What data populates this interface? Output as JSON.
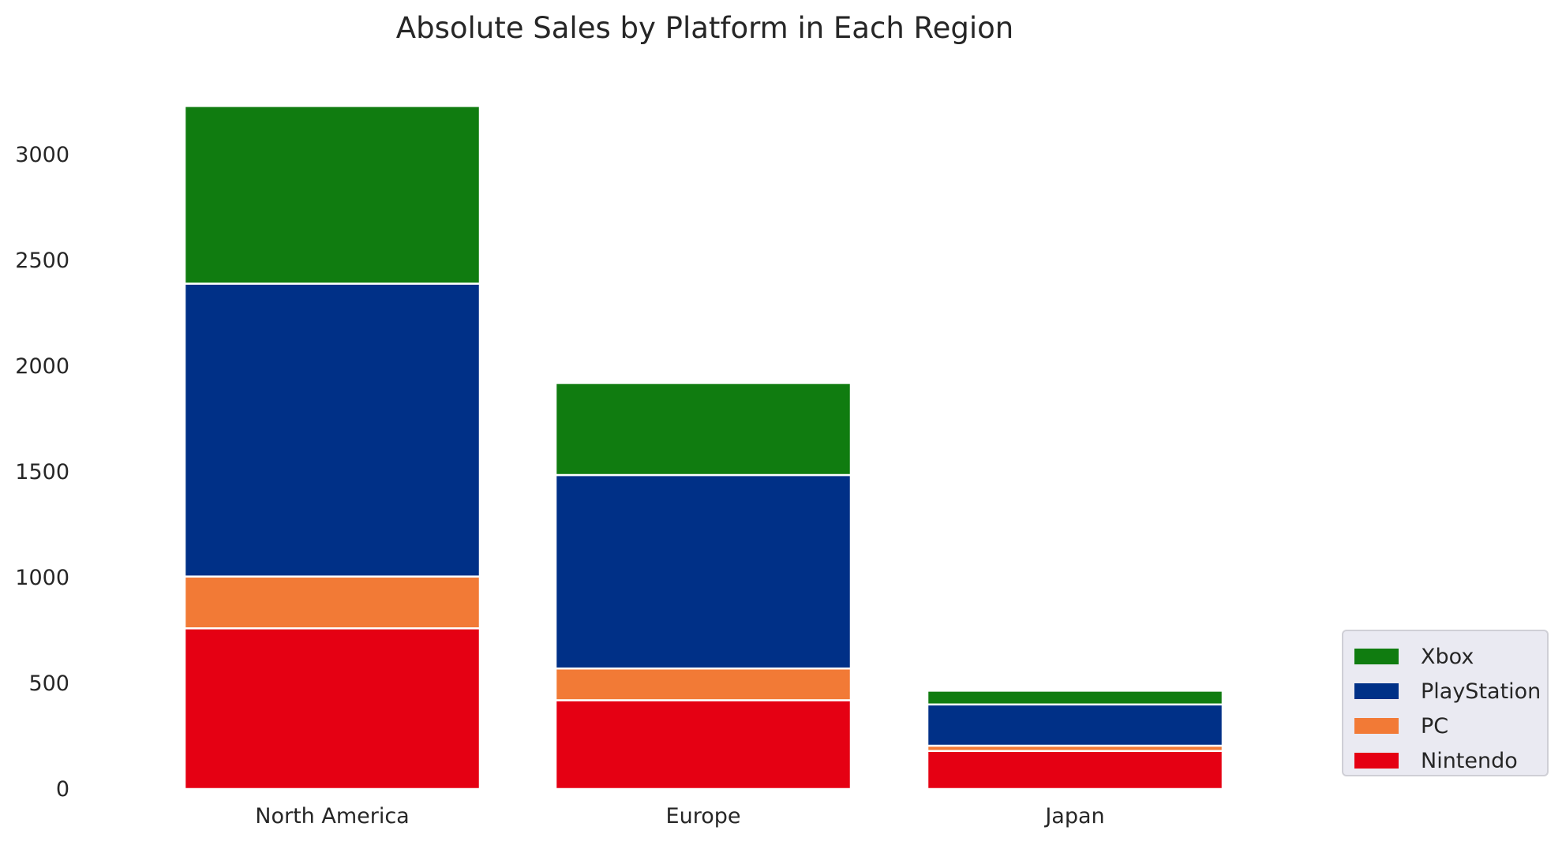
{
  "chart_data": {
    "type": "bar",
    "stacked": true,
    "title": "Absolute Sales by Platform in Each Region",
    "xlabel": "",
    "ylabel": "",
    "categories": [
      "North America",
      "Europe",
      "Japan"
    ],
    "series": [
      {
        "name": "Nintendo",
        "color": "#e50013",
        "values": [
          760,
          420,
          180
        ]
      },
      {
        "name": "PC",
        "color": "#f27a36",
        "values": [
          245,
          150,
          25
        ]
      },
      {
        "name": "PlayStation",
        "color": "#003087",
        "values": [
          1385,
          915,
          195
        ]
      },
      {
        "name": "Xbox",
        "color": "#107c10",
        "values": [
          840,
          435,
          65
        ]
      }
    ],
    "legend_order": [
      "Xbox",
      "PlayStation",
      "PC",
      "Nintendo"
    ],
    "yticks": [
      0,
      500,
      1000,
      1500,
      2000,
      2500,
      3000
    ],
    "ylim": [
      0,
      3230
    ],
    "grid": false,
    "legend_position": "lower-right outside"
  }
}
